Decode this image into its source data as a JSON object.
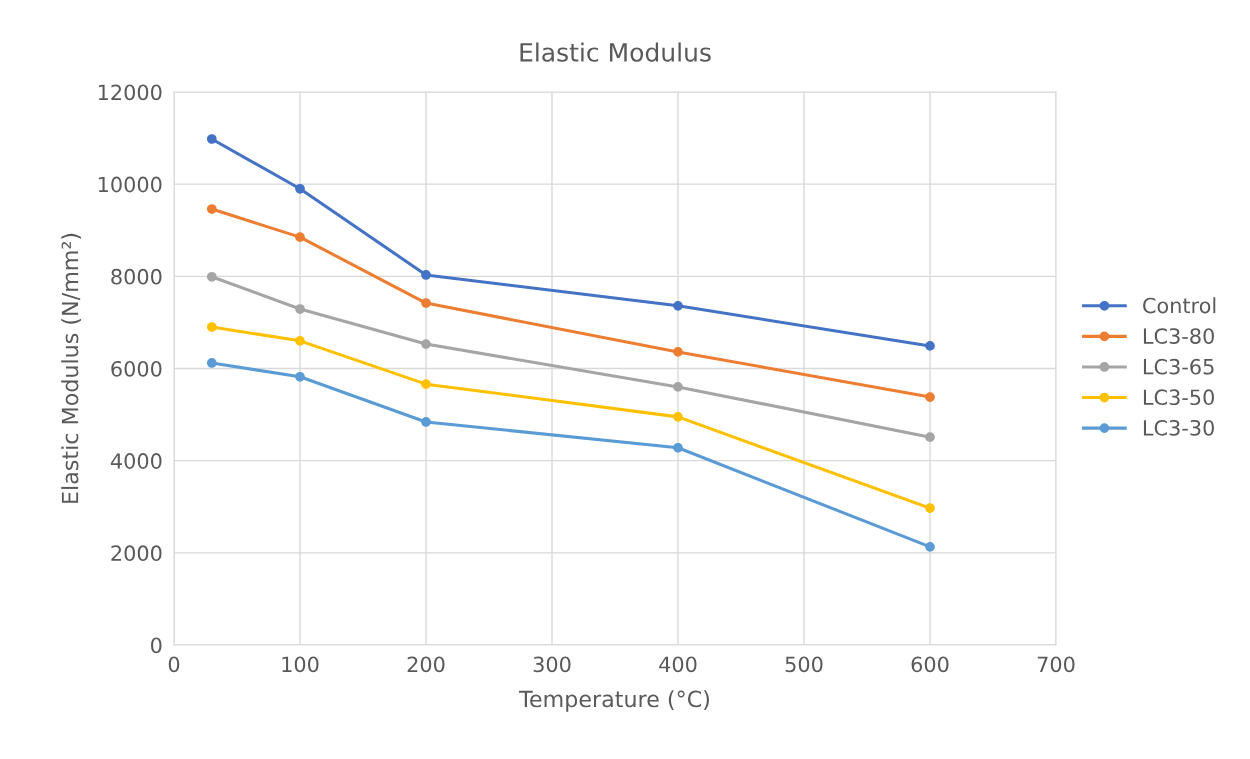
{
  "chart_data": {
    "type": "line",
    "title": "Elastic Modulus",
    "xlabel": "Temperature (°C)",
    "ylabel": "Elastic Modulus (N/mm²)",
    "x": [
      30,
      100,
      200,
      400,
      600
    ],
    "series": [
      {
        "name": "Control",
        "color": "#4472c4",
        "values": [
          10980,
          9900,
          8030,
          7360,
          6490
        ]
      },
      {
        "name": "LC3-80",
        "color": "#ed7d31",
        "values": [
          9460,
          8850,
          7420,
          6360,
          5380
        ]
      },
      {
        "name": "LC3-65",
        "color": "#a5a5a5",
        "values": [
          7990,
          7290,
          6530,
          5600,
          4510
        ]
      },
      {
        "name": "LC3-50",
        "color": "#ffc000",
        "values": [
          6900,
          6600,
          5660,
          4950,
          2970
        ]
      },
      {
        "name": "LC3-30",
        "color": "#5b9bd5",
        "values": [
          6120,
          5820,
          4840,
          4280,
          2130
        ]
      }
    ],
    "xlim": [
      0,
      700
    ],
    "xticks": [
      0,
      100,
      200,
      300,
      400,
      500,
      600,
      700
    ],
    "ylim": [
      0,
      12000
    ],
    "yticks": [
      0,
      2000,
      4000,
      6000,
      8000,
      10000,
      12000
    ],
    "grid": true,
    "legend": "right",
    "marker": "circle",
    "line_style": "solid"
  }
}
